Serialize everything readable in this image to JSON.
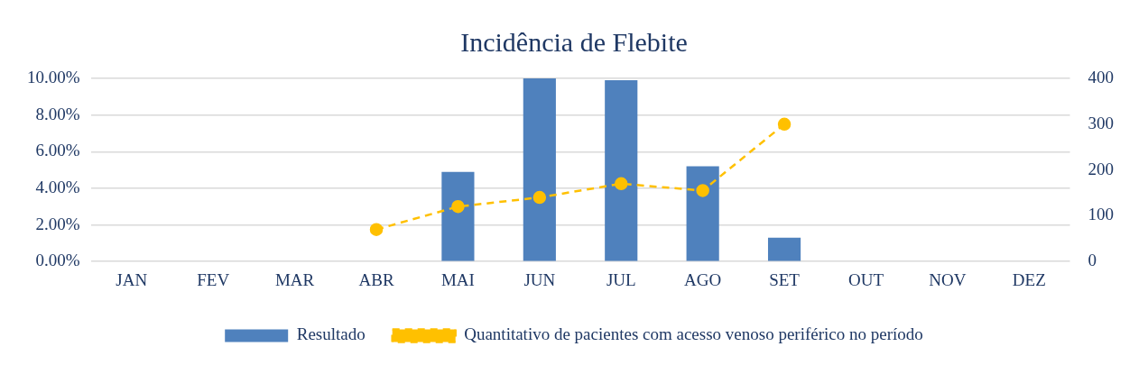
{
  "chart_data": {
    "type": "bar",
    "title": "Incidência de Flebite",
    "categories": [
      "JAN",
      "FEV",
      "MAR",
      "ABR",
      "MAI",
      "JUN",
      "JUL",
      "AGO",
      "SET",
      "OUT",
      "NOV",
      "DEZ"
    ],
    "series": [
      {
        "name": "Resultado",
        "color": "#4f81bd",
        "values": [
          null,
          null,
          null,
          null,
          4.9,
          10.0,
          9.9,
          5.2,
          1.3,
          null,
          null,
          null
        ]
      },
      {
        "name": "Quantitativo de pacientes com acesso venoso periférico no período",
        "type": "line",
        "axis": "y2",
        "color": "#ffc000",
        "line_style": "dashed",
        "marker": "circle",
        "values": [
          null,
          null,
          null,
          70,
          120,
          140,
          170,
          155,
          300,
          null,
          null,
          null
        ]
      }
    ],
    "ylim": [
      0,
      10
    ],
    "yticks": [
      {
        "value": 0,
        "label": "0.00%"
      },
      {
        "value": 2,
        "label": "2.00%"
      },
      {
        "value": 4,
        "label": "4.00%"
      },
      {
        "value": 6,
        "label": "6.00%"
      },
      {
        "value": 8,
        "label": "8.00%"
      },
      {
        "value": 10,
        "label": "10.00%"
      }
    ],
    "y2lim": [
      0,
      400
    ],
    "y2ticks": [
      0,
      100,
      200,
      300,
      400
    ],
    "grid": "y",
    "legend": "bottom"
  }
}
